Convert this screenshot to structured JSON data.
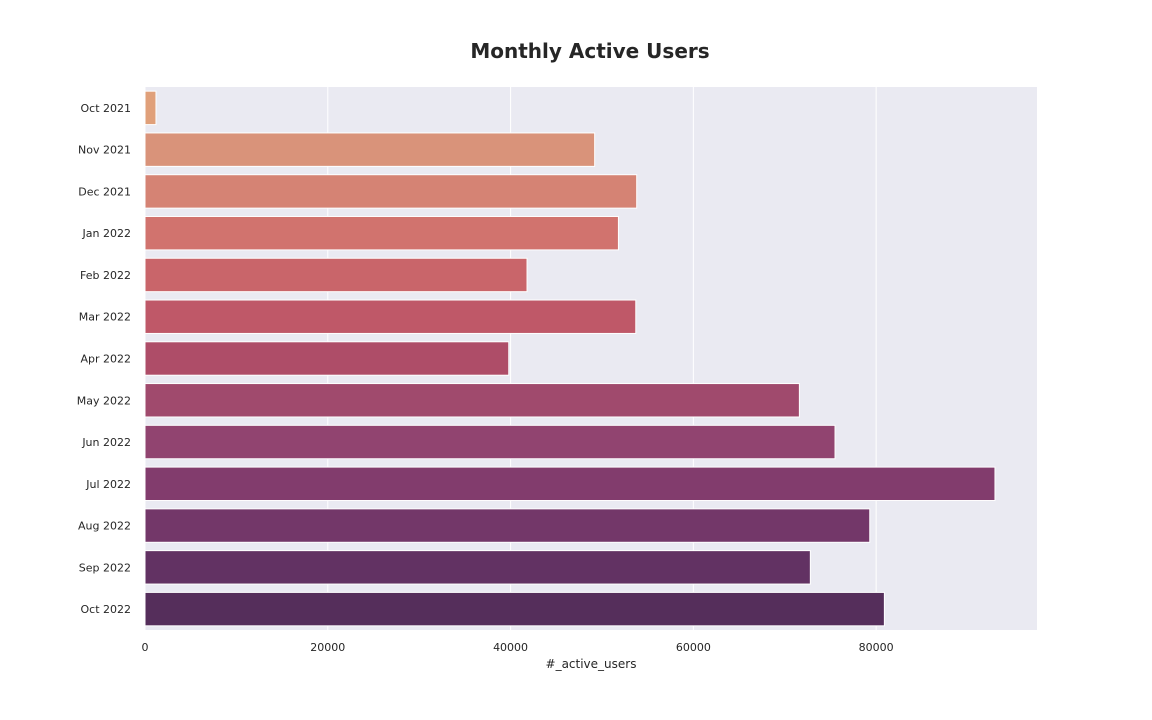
{
  "chart_data": {
    "type": "bar",
    "orientation": "horizontal",
    "title": "Monthly Active Users",
    "xlabel": "#_active_users",
    "ylabel": "",
    "categories": [
      "Oct 2021",
      "Nov 2021",
      "Dec 2021",
      "Jan 2022",
      "Feb 2022",
      "Mar 2022",
      "Apr 2022",
      "May 2022",
      "Jun 2022",
      "Jul 2022",
      "Aug 2022",
      "Sep 2022",
      "Oct 2022"
    ],
    "values": [
      1200,
      49200,
      53800,
      51800,
      41800,
      53700,
      39800,
      71600,
      75500,
      93000,
      79300,
      72800,
      80900
    ],
    "xlim": [
      0,
      97600
    ],
    "xticks": [
      0,
      20000,
      40000,
      60000,
      80000
    ],
    "xtick_labels": [
      "0",
      "20000",
      "40000",
      "60000",
      "80000"
    ],
    "grid": true,
    "colors": {
      "plot_background": "#eaeaf2",
      "grid": "#ffffff",
      "palette": [
        "#e0a07a",
        "#d9937a",
        "#d58374",
        "#d1736e",
        "#c9656a",
        "#bf5868",
        "#ae4d68",
        "#a04a6d",
        "#914470",
        "#823c6d",
        "#733769",
        "#623263",
        "#552e5b"
      ]
    }
  }
}
